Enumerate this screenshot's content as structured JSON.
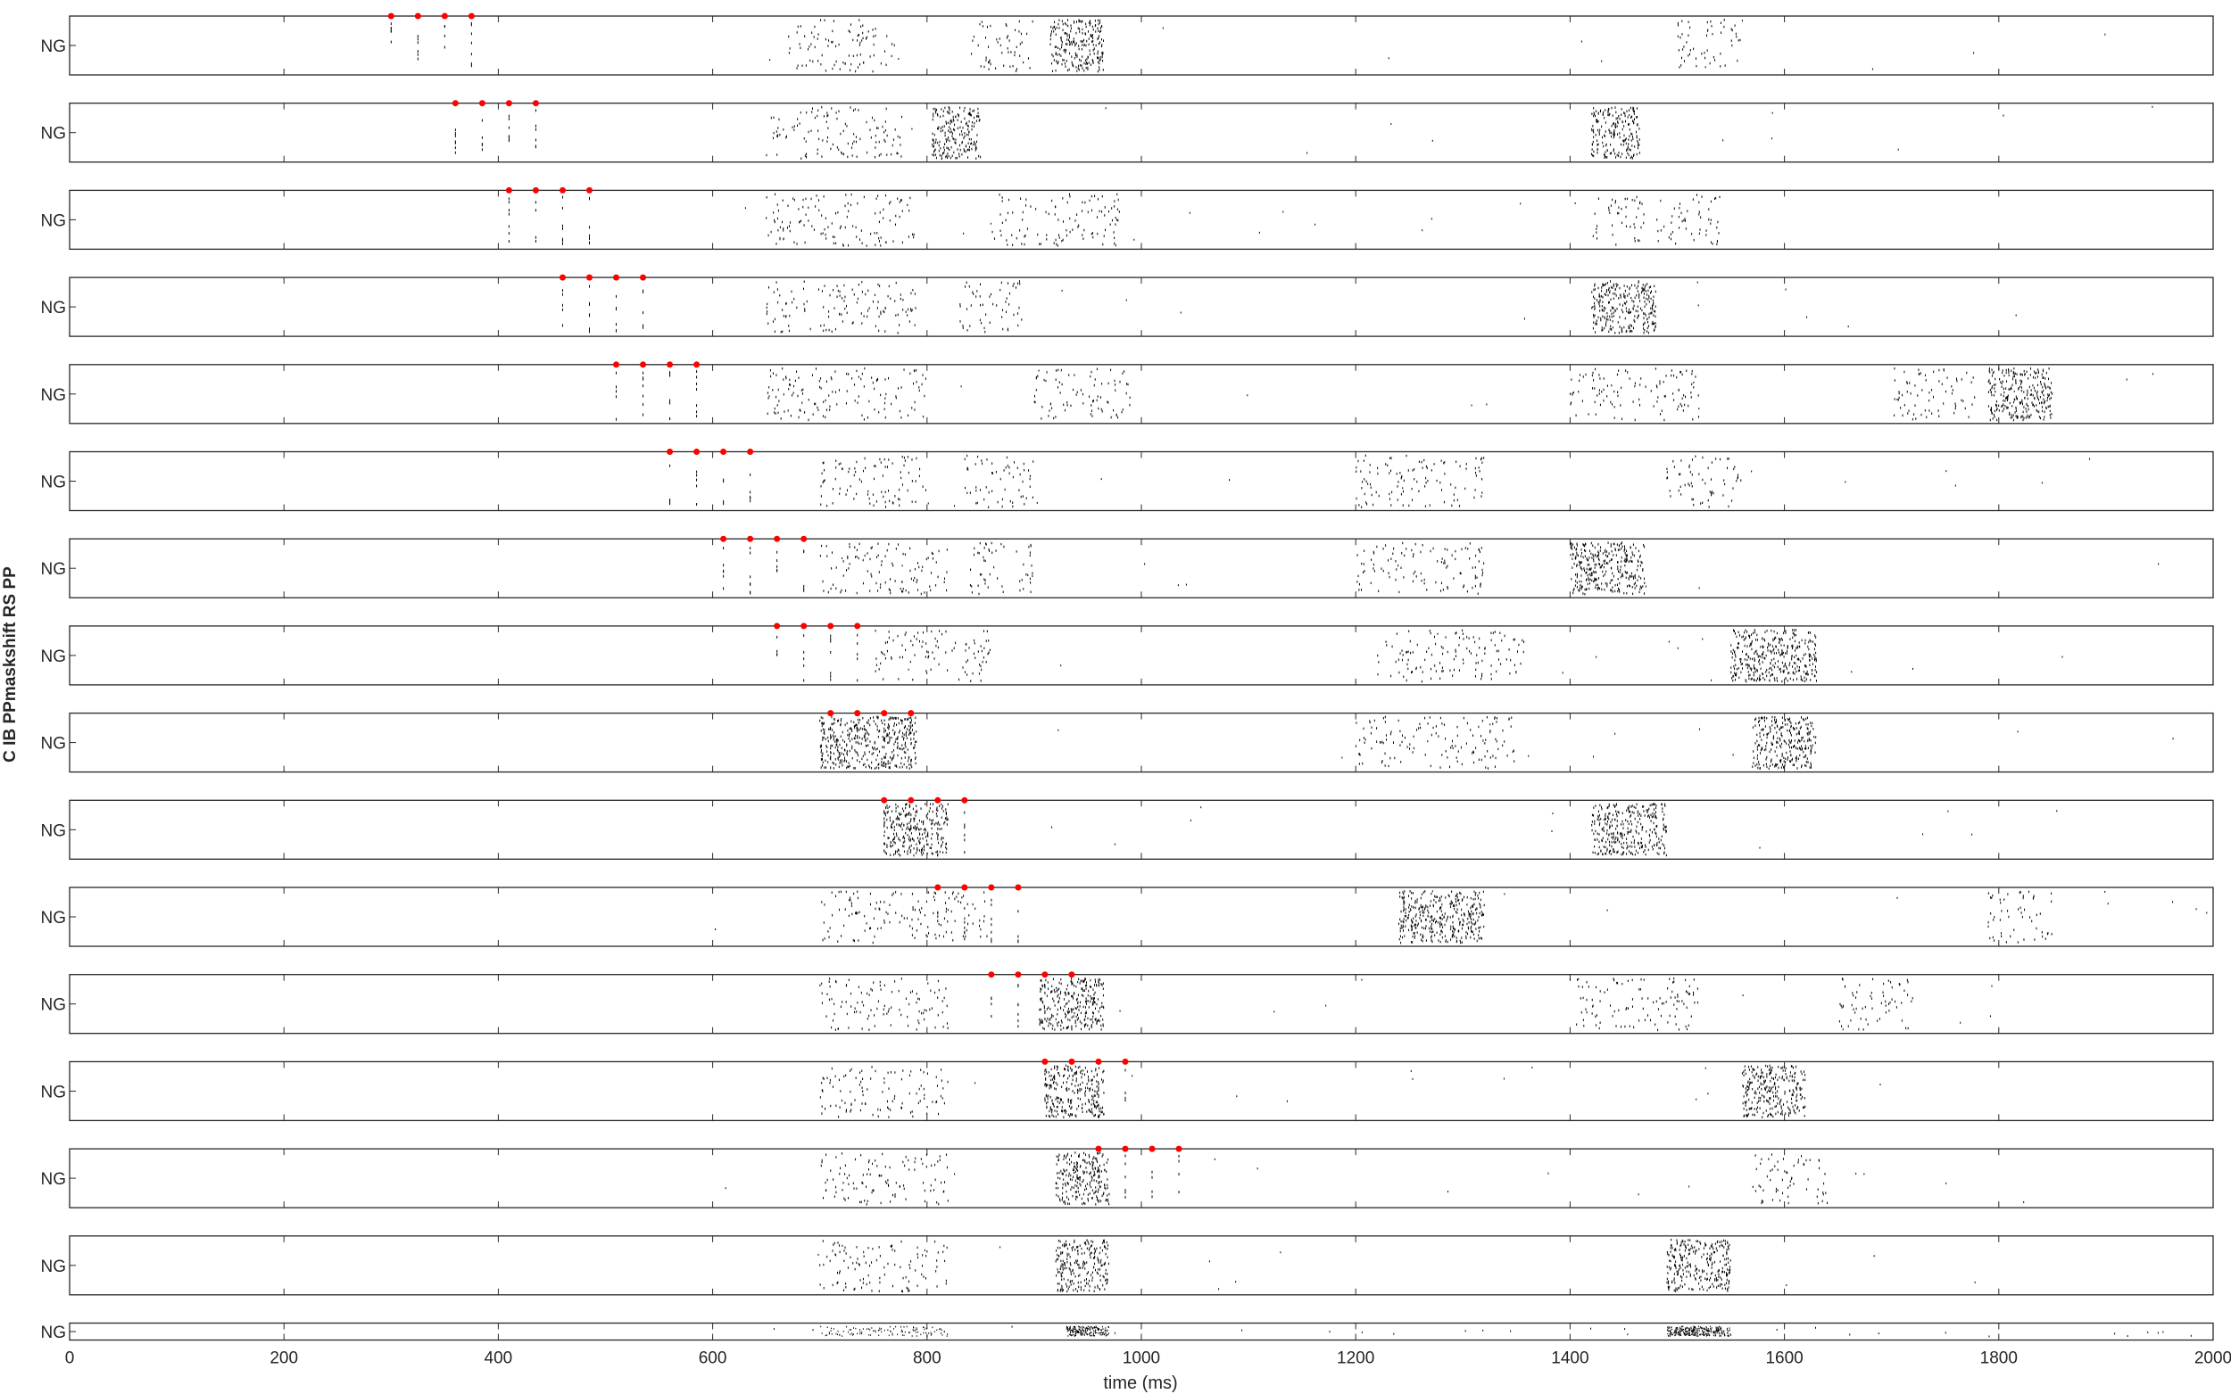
{
  "figure": {
    "title": "",
    "panel_count": 16
  },
  "chart_data": {
    "type": "scatter",
    "subtype": "spike-raster",
    "title": "",
    "xlabel": "time (ms)",
    "ylabel": "C IB PPmaskshift RS PP",
    "xlim": [
      0,
      2000
    ],
    "x_ticks": [
      "0",
      "200",
      "400",
      "600",
      "800",
      "1000",
      "1200",
      "1400",
      "1600",
      "1800",
      "2000"
    ],
    "grid": false,
    "legend": "none",
    "colors": {
      "spikes": "#000000",
      "pulse_markers": "#ff0000",
      "axes": "#262626"
    },
    "panels": [
      {
        "label": "NG",
        "pulse_ms": [
          300,
          325,
          350,
          375
        ],
        "bursts": [
          {
            "x": [
              670,
              770
            ],
            "dense": false
          },
          {
            "x": [
              840,
              900
            ],
            "dense": false
          },
          {
            "x": [
              915,
              965
            ],
            "dense": true
          },
          {
            "x": [
              1500,
              1560
            ],
            "dense": false
          }
        ]
      },
      {
        "label": "NG",
        "pulse_ms": [
          360,
          385,
          410,
          435
        ],
        "bursts": [
          {
            "x": [
              650,
              780
            ],
            "dense": false
          },
          {
            "x": [
              805,
              850
            ],
            "dense": true
          },
          {
            "x": [
              1420,
              1465
            ],
            "dense": true
          }
        ]
      },
      {
        "label": "NG",
        "pulse_ms": [
          410,
          435,
          460,
          485
        ],
        "bursts": [
          {
            "x": [
              650,
              790
            ],
            "dense": false
          },
          {
            "x": [
              860,
              980
            ],
            "dense": false
          },
          {
            "x": [
              1420,
              1470
            ],
            "dense": false
          },
          {
            "x": [
              1480,
              1540
            ],
            "dense": false
          }
        ]
      },
      {
        "label": "NG",
        "pulse_ms": [
          460,
          485,
          510,
          535
        ],
        "bursts": [
          {
            "x": [
              650,
              790
            ],
            "dense": false
          },
          {
            "x": [
              830,
              890
            ],
            "dense": false
          },
          {
            "x": [
              1420,
              1480
            ],
            "dense": true
          }
        ]
      },
      {
        "label": "NG",
        "pulse_ms": [
          510,
          535,
          560,
          585
        ],
        "bursts": [
          {
            "x": [
              650,
              800
            ],
            "dense": false
          },
          {
            "x": [
              900,
              990
            ],
            "dense": false
          },
          {
            "x": [
              1400,
              1520
            ],
            "dense": false
          },
          {
            "x": [
              1700,
              1780
            ],
            "dense": false
          },
          {
            "x": [
              1790,
              1850
            ],
            "dense": true
          }
        ]
      },
      {
        "label": "NG",
        "pulse_ms": [
          560,
          585,
          610,
          635
        ],
        "bursts": [
          {
            "x": [
              700,
              800
            ],
            "dense": false
          },
          {
            "x": [
              835,
              900
            ],
            "dense": false
          },
          {
            "x": [
              1200,
              1320
            ],
            "dense": false
          },
          {
            "x": [
              1490,
              1560
            ],
            "dense": false
          }
        ]
      },
      {
        "label": "NG",
        "pulse_ms": [
          610,
          635,
          660,
          685
        ],
        "bursts": [
          {
            "x": [
              700,
              820
            ],
            "dense": false
          },
          {
            "x": [
              840,
              900
            ],
            "dense": false
          },
          {
            "x": [
              1200,
              1320
            ],
            "dense": false
          },
          {
            "x": [
              1400,
              1470
            ],
            "dense": true
          }
        ]
      },
      {
        "label": "NG",
        "pulse_ms": [
          660,
          685,
          710,
          735
        ],
        "bursts": [
          {
            "x": [
              750,
              860
            ],
            "dense": false
          },
          {
            "x": [
              1220,
              1360
            ],
            "dense": false
          },
          {
            "x": [
              1550,
              1630
            ],
            "dense": true
          }
        ]
      },
      {
        "label": "NG",
        "pulse_ms": [
          710,
          735,
          760,
          785
        ],
        "bursts": [
          {
            "x": [
              700,
              790
            ],
            "dense": true
          },
          {
            "x": [
              1200,
              1350
            ],
            "dense": false
          },
          {
            "x": [
              1570,
              1630
            ],
            "dense": true
          }
        ]
      },
      {
        "label": "NG",
        "pulse_ms": [
          760,
          785,
          810,
          835
        ],
        "bursts": [
          {
            "x": [
              760,
              820
            ],
            "dense": true
          },
          {
            "x": [
              1420,
              1490
            ],
            "dense": true
          }
        ]
      },
      {
        "label": "NG",
        "pulse_ms": [
          810,
          835,
          860,
          885
        ],
        "bursts": [
          {
            "x": [
              700,
              860
            ],
            "dense": false
          },
          {
            "x": [
              1240,
              1320
            ],
            "dense": true
          },
          {
            "x": [
              1790,
              1850
            ],
            "dense": false
          }
        ]
      },
      {
        "label": "NG",
        "pulse_ms": [
          860,
          885,
          910,
          935
        ],
        "bursts": [
          {
            "x": [
              700,
              820
            ],
            "dense": false
          },
          {
            "x": [
              905,
              965
            ],
            "dense": true
          },
          {
            "x": [
              1400,
              1520
            ],
            "dense": false
          },
          {
            "x": [
              1650,
              1720
            ],
            "dense": false
          }
        ]
      },
      {
        "label": "NG",
        "pulse_ms": [
          910,
          935,
          960,
          985
        ],
        "bursts": [
          {
            "x": [
              700,
              820
            ],
            "dense": false
          },
          {
            "x": [
              910,
              965
            ],
            "dense": true
          },
          {
            "x": [
              1560,
              1620
            ],
            "dense": true
          }
        ]
      },
      {
        "label": "NG",
        "pulse_ms": [
          960,
          985,
          1010,
          1035
        ],
        "bursts": [
          {
            "x": [
              700,
              820
            ],
            "dense": false
          },
          {
            "x": [
              920,
              970
            ],
            "dense": true
          },
          {
            "x": [
              1570,
              1640
            ],
            "dense": false
          }
        ]
      },
      {
        "label": "NG",
        "pulse_ms": [],
        "bursts": [
          {
            "x": [
              700,
              820
            ],
            "dense": false
          },
          {
            "x": [
              920,
              970
            ],
            "dense": true
          },
          {
            "x": [
              1490,
              1550
            ],
            "dense": true
          }
        ]
      },
      {
        "label": "NG",
        "pulse_ms": [],
        "bursts": [
          {
            "x": [
              700,
              820
            ],
            "dense": false
          },
          {
            "x": [
              930,
              970
            ],
            "dense": true
          },
          {
            "x": [
              1490,
              1550
            ],
            "dense": true
          }
        ]
      }
    ]
  }
}
